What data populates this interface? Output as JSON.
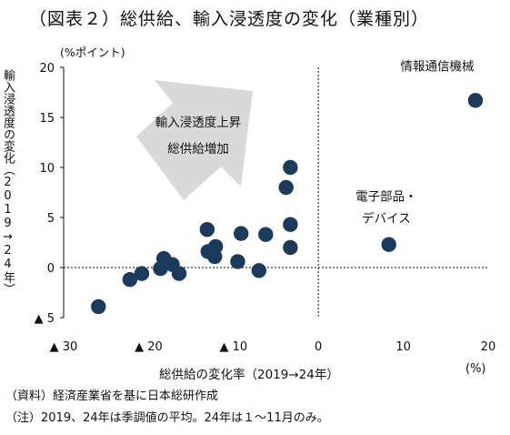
{
  "figure": {
    "title": "（図表２）総供給、輸入浸透度の変化（業種別）",
    "y_unit": "(%ポイント)",
    "x_unit": "(%)",
    "ylabel": "輸入浸透度の変化（2019→24年）",
    "xlabel": "総供給の変化率（2019→24年）",
    "source_note": "（資料）経済産業省を基に日本総研作成",
    "footnote": "（注）2019、24年は季調値の平均。24年は１～11月のみ。"
  },
  "chart_data": {
    "type": "scatter",
    "title": "（図表２）総供給、輸入浸透度の変化（業種別）",
    "xlabel": "総供給の変化率（2019→24年）",
    "ylabel": "輸入浸透度の変化（2019→24年）",
    "xlim": [
      -30,
      20
    ],
    "ylim": [
      -5,
      20
    ],
    "x_ticks": [
      {
        "value": -30,
        "label": "▲ 30"
      },
      {
        "value": -20,
        "label": "▲ 20"
      },
      {
        "value": -10,
        "label": "▲ 10"
      },
      {
        "value": 0,
        "label": "0"
      },
      {
        "value": 10,
        "label": "10"
      },
      {
        "value": 20,
        "label": "20"
      }
    ],
    "y_ticks": [
      {
        "value": -5,
        "label": "▲ 5"
      },
      {
        "value": 0,
        "label": "0"
      },
      {
        "value": 5,
        "label": "5"
      },
      {
        "value": 10,
        "label": "10"
      },
      {
        "value": 15,
        "label": "15"
      },
      {
        "value": 20,
        "label": "20"
      }
    ],
    "grid": false,
    "point_color": "#1b3a5c",
    "arrow_color": "#d9d9d9",
    "arrow_label_lines": [
      "輸入浸透度上昇",
      "総供給増加"
    ],
    "points": [
      {
        "x": 18.5,
        "y": 16.7
      },
      {
        "x": 8.3,
        "y": 2.3
      },
      {
        "x": -3.3,
        "y": 10.0
      },
      {
        "x": -3.8,
        "y": 8.0
      },
      {
        "x": -3.3,
        "y": 4.3
      },
      {
        "x": -3.3,
        "y": 2.0
      },
      {
        "x": -6.2,
        "y": 3.3
      },
      {
        "x": -9.1,
        "y": 3.4
      },
      {
        "x": -9.5,
        "y": 0.6
      },
      {
        "x": -7.0,
        "y": -0.3
      },
      {
        "x": -13.1,
        "y": 3.8
      },
      {
        "x": -12.1,
        "y": 2.1
      },
      {
        "x": -13.0,
        "y": 1.6
      },
      {
        "x": -12.2,
        "y": 1.1
      },
      {
        "x": -18.2,
        "y": 0.9
      },
      {
        "x": -17.2,
        "y": 0.3
      },
      {
        "x": -18.6,
        "y": -0.1
      },
      {
        "x": -16.4,
        "y": -0.6
      },
      {
        "x": -20.8,
        "y": -0.6
      },
      {
        "x": -22.2,
        "y": -1.2
      },
      {
        "x": -25.9,
        "y": -3.9
      }
    ],
    "annotations": [
      {
        "lines": [
          "情報通信機械"
        ],
        "x": 14.0,
        "y": 19.7
      },
      {
        "lines": [
          "電子部品・",
          "デバイス"
        ],
        "x": 8.0,
        "y": 6.7
      }
    ]
  }
}
